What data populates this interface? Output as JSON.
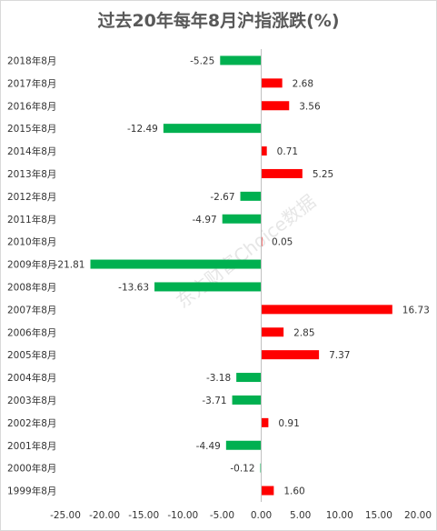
{
  "chart_data": {
    "type": "bar",
    "orientation": "horizontal",
    "title": "过去20年每年8月沪指涨跌(%)",
    "categories": [
      "2018年8月",
      "2017年8月",
      "2016年8月",
      "2015年8月",
      "2014年8月",
      "2013年8月",
      "2012年8月",
      "2011年8月",
      "2010年8月",
      "2009年8月",
      "2008年8月",
      "2007年8月",
      "2006年8月",
      "2005年8月",
      "2004年8月",
      "2003年8月",
      "2002年8月",
      "2001年8月",
      "2000年8月",
      "1999年8月"
    ],
    "values": [
      -5.25,
      2.68,
      3.56,
      -12.49,
      0.71,
      5.25,
      -2.67,
      -4.97,
      0.05,
      -21.81,
      -13.63,
      16.73,
      2.85,
      7.37,
      -3.18,
      -3.71,
      0.91,
      -4.49,
      -0.12,
      1.6
    ],
    "value_labels": [
      "-5.25",
      "2.68",
      "3.56",
      "-12.49",
      "0.71",
      "5.25",
      "-2.67",
      "-4.97",
      "0.05",
      "-21.81",
      "-13.63",
      "16.73",
      "2.85",
      "7.37",
      "-3.18",
      "-3.71",
      "0.91",
      "-4.49",
      "-0.12",
      "1.60"
    ],
    "xlim": [
      -25,
      20
    ],
    "xticks": [
      -25,
      -20,
      -15,
      -10,
      -5,
      0,
      5,
      10,
      15,
      20
    ],
    "xtick_labels": [
      "-25.00",
      "-20.00",
      "-15.00",
      "-10.00",
      "-5.00",
      "0.00",
      "5.00",
      "10.00",
      "15.00",
      "20.00"
    ],
    "colors": {
      "positive": "#ff0000",
      "negative": "#00b050"
    },
    "grid": false,
    "legend": "none"
  },
  "watermark": "东方财富Choice数据"
}
